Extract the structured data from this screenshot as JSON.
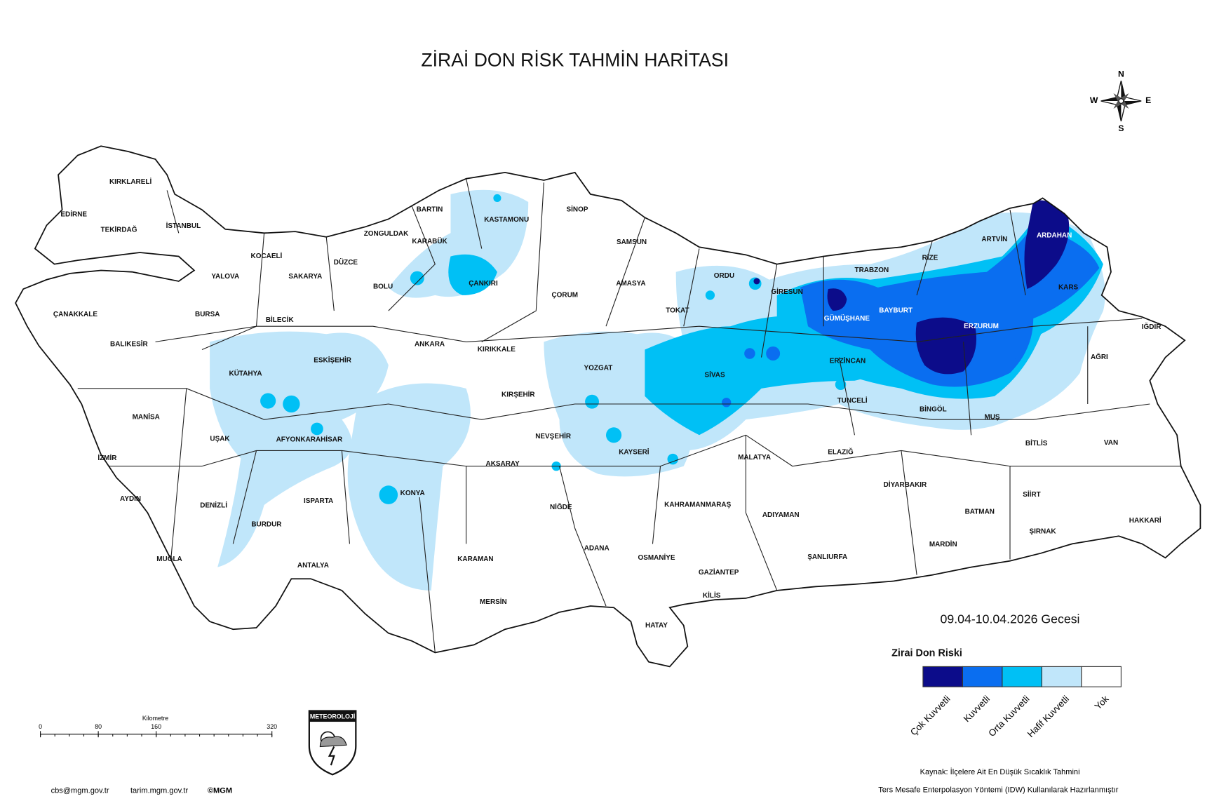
{
  "title": "ZİRAİ DON RİSK TAHMİN HARİTASI",
  "date": "09.04-10.04.2026 Gecesi",
  "legend": {
    "title": "Zirai Don Riski",
    "items": [
      {
        "label": "Çok Kuvvetli",
        "color": "#0c0c8a"
      },
      {
        "label": "Kuvvetli",
        "color": "#0a6ef0"
      },
      {
        "label": "Orta Kuvvetli",
        "color": "#00c0f5"
      },
      {
        "label": "Hafif Kuvvetli",
        "color": "#c0e6fa"
      },
      {
        "label": "Yok",
        "color": "#ffffff"
      }
    ]
  },
  "provinces": [
    "KIRKLARELİ",
    "EDİRNE",
    "TEKİRDAĞ",
    "İSTANBUL",
    "KOCAELİ",
    "YALOVA",
    "SAKARYA",
    "DÜZCE",
    "ZONGULDAK",
    "BARTIN",
    "KARABÜK",
    "KASTAMONU",
    "SİNOP",
    "SAMSUN",
    "ÇANKIRI",
    "BOLU",
    "ÇANAKKALE",
    "BURSA",
    "BİLECİK",
    "BALIKESİR",
    "ESKİŞEHİR",
    "ANKARA",
    "ÇORUM",
    "AMASYA",
    "TOKAT",
    "ORDU",
    "GİRESUN",
    "TRABZON",
    "RİZE",
    "ARTVİN",
    "ARDAHAN",
    "KARS",
    "IĞDIR",
    "AĞRI",
    "ERZURUM",
    "BAYBURT",
    "GÜMÜŞHANE",
    "ERZİNCAN",
    "TUNCELİ",
    "BİNGÖL",
    "MUŞ",
    "BİTLİS",
    "VAN",
    "SİVAS",
    "YOZGAT",
    "KIRIKKALE",
    "KIRŞEHİR",
    "KÜTAHYA",
    "MANİSA",
    "UŞAK",
    "AFYONKARAHİSAR",
    "İZMİR",
    "NEVŞEHİR",
    "KAYSERİ",
    "AKSARAY",
    "MALATYA",
    "ELAZIĞ",
    "DİYARBAKIR",
    "SİİRT",
    "HAKKARİ",
    "BATMAN",
    "ŞIRNAK",
    "MARDİN",
    "AYDIN",
    "DENİZLİ",
    "ISPARTA",
    "KONYA",
    "NİĞDE",
    "KAHRAMANMARAŞ",
    "ADIYAMAN",
    "BURDUR",
    "MUĞLA",
    "ANTALYA",
    "KARAMAN",
    "ADANA",
    "OSMANİYE",
    "GAZİANTEP",
    "ŞANLIURFA",
    "KİLİS",
    "MERSİN",
    "HATAY"
  ],
  "compass": {
    "n": "N",
    "e": "E",
    "s": "S",
    "w": "W"
  },
  "scale": {
    "title": "Kilometre",
    "ticks": [
      0,
      80,
      160,
      320
    ]
  },
  "logo": "METEOROLOJİ",
  "footer": {
    "contacts": [
      "cbs@mgm.gov.tr",
      "tarim.mgm.gov.tr",
      "©MGM"
    ],
    "source": [
      "Kaynak: İlçelere Ait En Düşük Sıcaklık Tahmini",
      "Ters Mesafe Enterpolasyon Yöntemi (IDW) Kullanılarak Hazırlanmıştır"
    ]
  }
}
